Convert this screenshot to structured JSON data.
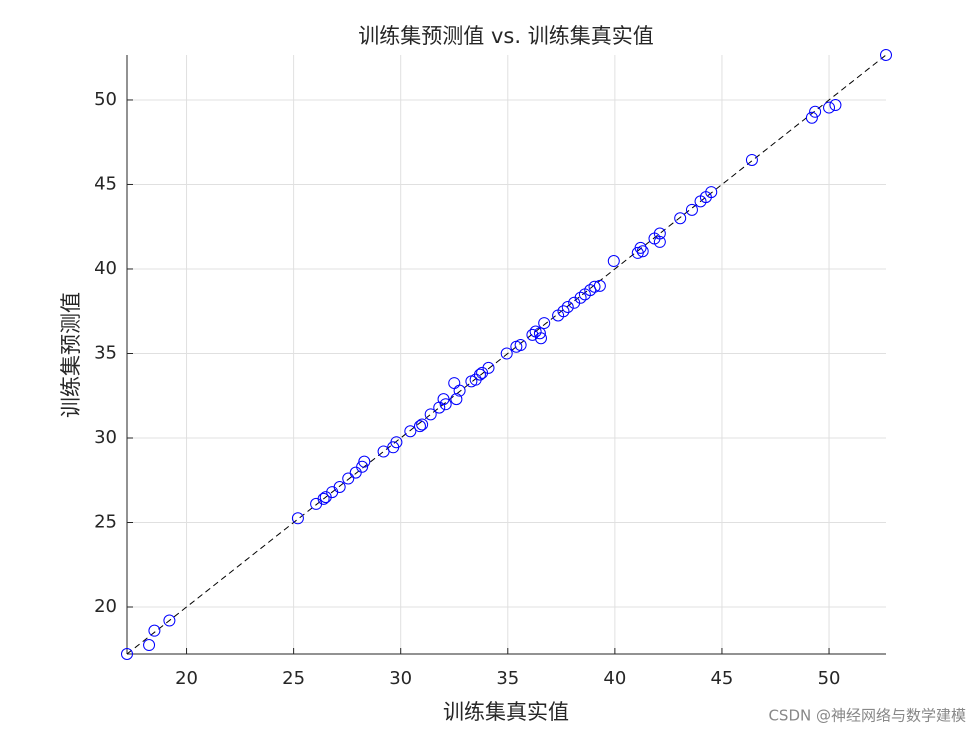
{
  "chart_data": {
    "type": "scatter",
    "title": "训练集预测值 vs. 训练集真实值",
    "xlabel": "训练集真实值",
    "ylabel": "训练集预测值",
    "watermark": "CSDN @神经网络与数学建模",
    "color": "#0000ff",
    "grid": true,
    "xlim": [
      17.22,
      52.66
    ],
    "ylim": [
      17.22,
      52.66
    ],
    "xticks": [
      20,
      25,
      30,
      35,
      40,
      45,
      50
    ],
    "yticks": [
      20,
      25,
      30,
      35,
      40,
      45,
      50
    ],
    "x": [
      17.22,
      18.25,
      18.5,
      19.2,
      25.2,
      26.05,
      26.4,
      26.5,
      26.8,
      27.15,
      27.55,
      27.9,
      28.2,
      28.3,
      29.2,
      29.65,
      29.8,
      30.45,
      30.9,
      31.0,
      31.4,
      31.8,
      32.0,
      32.1,
      32.5,
      32.6,
      32.75,
      33.3,
      33.5,
      33.7,
      33.8,
      34.1,
      34.95,
      35.4,
      35.6,
      36.15,
      36.3,
      36.5,
      36.55,
      36.7,
      37.35,
      37.6,
      37.8,
      38.1,
      38.4,
      38.6,
      38.85,
      39.05,
      39.3,
      39.95,
      41.07,
      41.2,
      41.3,
      41.85,
      42.1,
      42.1,
      43.05,
      43.6,
      44.0,
      44.25,
      44.5,
      46.4,
      49.2,
      49.35,
      50.0,
      50.3,
      52.66
    ],
    "values": [
      17.22,
      17.75,
      18.6,
      19.2,
      25.25,
      26.1,
      26.4,
      26.5,
      26.8,
      27.1,
      27.6,
      27.95,
      28.3,
      28.6,
      29.2,
      29.45,
      29.75,
      30.4,
      30.7,
      30.8,
      31.4,
      31.8,
      32.3,
      32.0,
      33.25,
      32.3,
      32.8,
      33.35,
      33.45,
      33.75,
      33.85,
      34.15,
      35.0,
      35.4,
      35.5,
      36.1,
      36.3,
      36.2,
      35.9,
      36.8,
      37.25,
      37.5,
      37.75,
      38.0,
      38.3,
      38.5,
      38.75,
      38.95,
      39.0,
      40.47,
      40.95,
      41.25,
      41.05,
      41.8,
      42.1,
      41.6,
      43.0,
      43.5,
      44.0,
      44.25,
      44.55,
      46.45,
      48.95,
      49.3,
      49.55,
      49.7,
      52.66
    ]
  }
}
